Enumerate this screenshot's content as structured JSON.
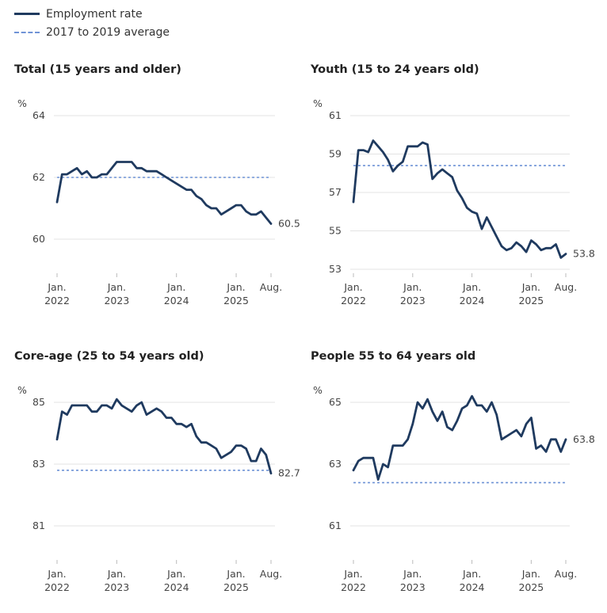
{
  "legend": {
    "employment_rate": "Employment rate",
    "average": "2017 to 2019 average"
  },
  "colors": {
    "line": "#1f3a5f",
    "average": "#6f93d6",
    "grid": "#e3e3e3",
    "axis": "#bbbbbb"
  },
  "chart_data": [
    {
      "type": "line",
      "title": "Total (15 years and older)",
      "ylabel": "%",
      "ylim": [
        59,
        64
      ],
      "yticks": [
        60,
        62,
        64
      ],
      "average": 62.0,
      "end_label": "60.5",
      "x_ticks": [
        {
          "month": 0,
          "line1": "Jan.",
          "line2": "2022"
        },
        {
          "month": 12,
          "line1": "Jan.",
          "line2": "2023"
        },
        {
          "month": 24,
          "line1": "Jan.",
          "line2": "2024"
        },
        {
          "month": 36,
          "line1": "Jan.",
          "line2": "2025"
        },
        {
          "month": 43,
          "line1": "Aug.",
          "line2": ""
        }
      ],
      "values": [
        61.2,
        62.1,
        62.1,
        62.2,
        62.3,
        62.1,
        62.2,
        62.0,
        62.0,
        62.1,
        62.1,
        62.3,
        62.5,
        62.5,
        62.5,
        62.5,
        62.3,
        62.3,
        62.2,
        62.2,
        62.2,
        62.1,
        62.0,
        61.9,
        61.8,
        61.7,
        61.6,
        61.6,
        61.4,
        61.3,
        61.1,
        61.0,
        61.0,
        60.8,
        60.9,
        61.0,
        61.1,
        61.1,
        60.9,
        60.8,
        60.8,
        60.9,
        60.7,
        60.5
      ]
    },
    {
      "type": "line",
      "title": "Youth (15 to 24 years old)",
      "ylabel": "%",
      "ylim": [
        52,
        61
      ],
      "yticks": [
        53,
        55,
        57,
        59,
        61
      ],
      "average": 58.4,
      "end_label": "53.8",
      "x_ticks": [
        {
          "month": 0,
          "line1": "Jan.",
          "line2": "2022"
        },
        {
          "month": 12,
          "line1": "Jan.",
          "line2": "2023"
        },
        {
          "month": 24,
          "line1": "Jan.",
          "line2": "2024"
        },
        {
          "month": 36,
          "line1": "Jan.",
          "line2": "2025"
        },
        {
          "month": 43,
          "line1": "Aug.",
          "line2": ""
        }
      ],
      "values": [
        56.5,
        59.2,
        59.2,
        59.1,
        59.7,
        59.4,
        59.1,
        58.7,
        58.1,
        58.4,
        58.6,
        59.4,
        59.4,
        59.4,
        59.6,
        59.5,
        57.7,
        58.0,
        58.2,
        58.0,
        57.8,
        57.1,
        56.7,
        56.2,
        56.0,
        55.9,
        55.1,
        55.7,
        55.2,
        54.7,
        54.2,
        54.0,
        54.1,
        54.4,
        54.2,
        53.9,
        54.5,
        54.3,
        54.0,
        54.1,
        54.1,
        54.3,
        53.6,
        53.8
      ]
    },
    {
      "type": "line",
      "title": "Core-age (25 to 54 years old)",
      "ylabel": "%",
      "ylim": [
        80,
        86
      ],
      "yticks": [
        81,
        83,
        85
      ],
      "average": 82.8,
      "end_label": "82.7",
      "x_ticks": [
        {
          "month": 0,
          "line1": "Jan.",
          "line2": "2022"
        },
        {
          "month": 12,
          "line1": "Jan.",
          "line2": "2023"
        },
        {
          "month": 24,
          "line1": "Jan.",
          "line2": "2024"
        },
        {
          "month": 36,
          "line1": "Jan.",
          "line2": "2025"
        },
        {
          "month": 43,
          "line1": "Aug.",
          "line2": ""
        }
      ],
      "values": [
        83.8,
        84.7,
        84.6,
        84.9,
        84.9,
        84.9,
        84.9,
        84.7,
        84.7,
        84.9,
        84.9,
        84.8,
        85.1,
        84.9,
        84.8,
        84.7,
        84.9,
        85.0,
        84.6,
        84.7,
        84.8,
        84.7,
        84.5,
        84.5,
        84.3,
        84.3,
        84.2,
        84.3,
        83.9,
        83.7,
        83.7,
        83.6,
        83.5,
        83.2,
        83.3,
        83.4,
        83.6,
        83.6,
        83.5,
        83.1,
        83.1,
        83.5,
        83.3,
        82.7
      ]
    },
    {
      "type": "line",
      "title": "People 55 to 64 years old",
      "ylabel": "%",
      "ylim": [
        60,
        66
      ],
      "yticks": [
        61,
        63,
        65
      ],
      "average": 62.4,
      "end_label": "63.8",
      "x_ticks": [
        {
          "month": 0,
          "line1": "Jan.",
          "line2": "2022"
        },
        {
          "month": 12,
          "line1": "Jan.",
          "line2": "2023"
        },
        {
          "month": 24,
          "line1": "Jan.",
          "line2": "2024"
        },
        {
          "month": 36,
          "line1": "Jan.",
          "line2": "2025"
        },
        {
          "month": 43,
          "line1": "Aug.",
          "line2": ""
        }
      ],
      "values": [
        62.8,
        63.1,
        63.2,
        63.2,
        63.2,
        62.5,
        63.0,
        62.9,
        63.6,
        63.6,
        63.6,
        63.8,
        64.3,
        65.0,
        64.8,
        65.1,
        64.7,
        64.4,
        64.7,
        64.2,
        64.1,
        64.4,
        64.8,
        64.9,
        65.2,
        64.9,
        64.9,
        64.7,
        65.0,
        64.6,
        63.8,
        63.9,
        64.0,
        64.1,
        63.9,
        64.3,
        64.5,
        63.5,
        63.6,
        63.4,
        63.8,
        63.8,
        63.4,
        63.8
      ]
    }
  ]
}
